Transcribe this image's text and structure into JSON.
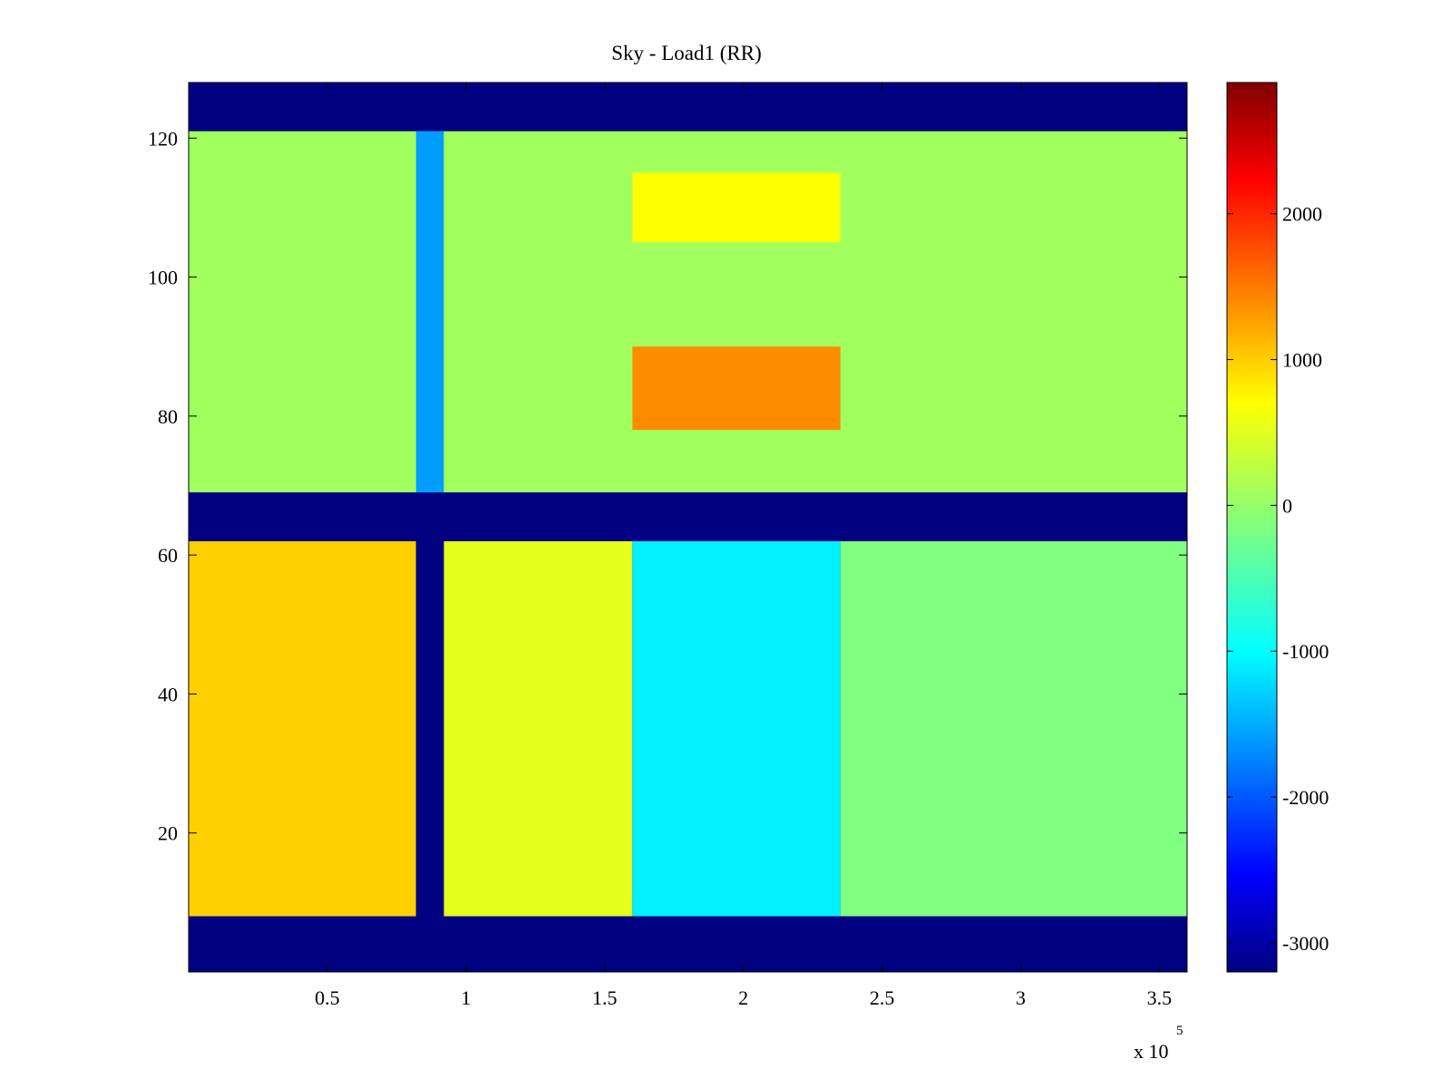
{
  "chart_data": {
    "type": "heatmap",
    "title": "Sky - Load1 (RR)",
    "xlabel": "",
    "ylabel": "",
    "x_exponent_label": "x 10",
    "x_exponent_power": "5",
    "xlim": [
      0,
      3.6
    ],
    "ylim": [
      0,
      128
    ],
    "x_ticks": [
      0.5,
      1,
      1.5,
      2,
      2.5,
      3,
      3.5
    ],
    "x_tick_labels": [
      "0.5",
      "1",
      "1.5",
      "2",
      "2.5",
      "3",
      "3.5"
    ],
    "y_ticks": [
      20,
      40,
      60,
      80,
      100,
      120
    ],
    "y_tick_labels": [
      "20",
      "40",
      "60",
      "80",
      "100",
      "120"
    ],
    "colormap": "jet",
    "clim": [
      -3200,
      2900
    ],
    "colorbar_ticks": [
      2000,
      1000,
      0,
      -1000,
      -2000,
      -3000
    ],
    "colorbar_tick_labels": [
      "2000",
      "1000",
      "0",
      "-1000",
      "-2000",
      "-3000"
    ],
    "masked_row_bands": [
      [
        0,
        8
      ],
      [
        62,
        69
      ],
      [
        121,
        128
      ]
    ],
    "masked_column_bands": [
      {
        "x": [
          0.82,
          0.92
        ],
        "y": [
          8,
          62
        ]
      }
    ],
    "regions": [
      {
        "x": [
          0.0,
          0.82
        ],
        "y": [
          8,
          62
        ],
        "value": 900,
        "label": "lower-left block"
      },
      {
        "x": [
          0.92,
          1.6
        ],
        "y": [
          8,
          62
        ],
        "value": 450
      },
      {
        "x": [
          1.6,
          2.35
        ],
        "y": [
          8,
          62
        ],
        "value": -1000
      },
      {
        "x": [
          2.35,
          3.6
        ],
        "y": [
          8,
          62
        ],
        "value": -150
      },
      {
        "x": [
          0.0,
          3.6
        ],
        "y": [
          69,
          121
        ],
        "value": 50
      },
      {
        "x": [
          1.6,
          2.35
        ],
        "y": [
          78,
          90
        ],
        "value": 1300
      },
      {
        "x": [
          1.6,
          2.35
        ],
        "y": [
          105,
          115
        ],
        "value": 600
      },
      {
        "x": [
          0.82,
          0.92
        ],
        "y": [
          69,
          121
        ],
        "value": -1500
      }
    ],
    "grid": false,
    "legend": "colorbar-right"
  }
}
